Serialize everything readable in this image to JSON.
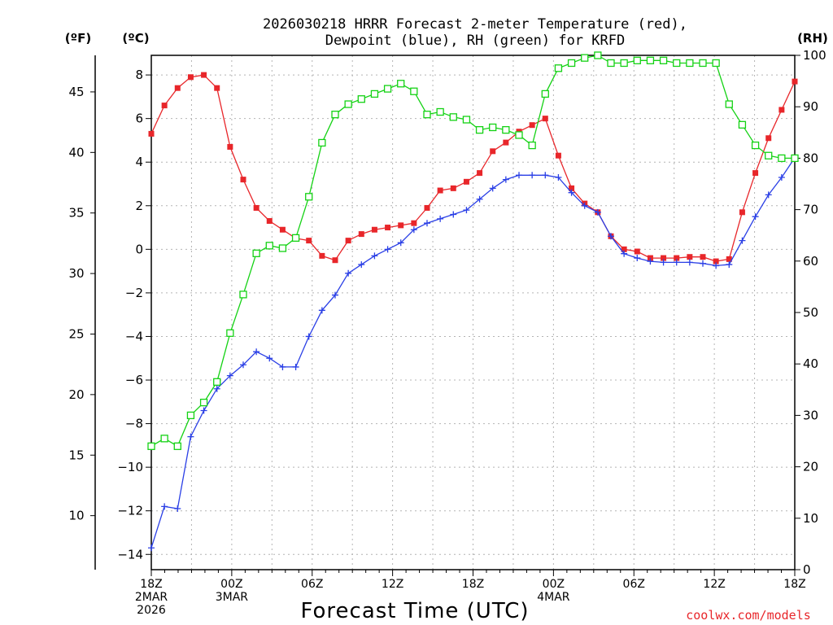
{
  "chart_data": {
    "type": "line",
    "title_line1": "2026030218 HRRR Forecast 2-meter Temperature (red),",
    "title_line2": "Dewpoint (blue), RH (green) for KRFD",
    "unit_left_f": "(ºF)",
    "unit_left_c": "(ºC)",
    "unit_right": "(RH)",
    "xlabel": "Forecast Time (UTC)",
    "credit": "coolwx.com/models",
    "x_range": [
      0,
      48
    ],
    "c_range": [
      -14.7,
      8.9
    ],
    "rh_range": [
      0,
      100
    ],
    "f_ticks": [
      10,
      15,
      20,
      25,
      30,
      35,
      40,
      45
    ],
    "c_ticks": [
      -14,
      -12,
      -10,
      -8,
      -6,
      -4,
      -2,
      0,
      2,
      4,
      6,
      8
    ],
    "rh_ticks": [
      0,
      10,
      20,
      30,
      40,
      50,
      60,
      70,
      80,
      90,
      100
    ],
    "x_ticks": [
      {
        "x": 0,
        "lines": [
          "18Z",
          "2MAR",
          "2026"
        ]
      },
      {
        "x": 6,
        "lines": [
          "00Z",
          "3MAR"
        ]
      },
      {
        "x": 12,
        "lines": [
          "06Z"
        ]
      },
      {
        "x": 18,
        "lines": [
          "12Z"
        ]
      },
      {
        "x": 24,
        "lines": [
          "18Z"
        ]
      },
      {
        "x": 30,
        "lines": [
          "00Z",
          "4MAR"
        ]
      },
      {
        "x": 36,
        "lines": [
          "06Z"
        ]
      },
      {
        "x": 42,
        "lines": [
          "12Z"
        ]
      },
      {
        "x": 48,
        "lines": [
          "18Z"
        ]
      }
    ],
    "series": [
      {
        "name": "2-meter Temperature",
        "unit": "C",
        "color": "#e8262a",
        "marker": "filled-square",
        "values": [
          5.3,
          6.6,
          7.4,
          7.9,
          8.0,
          7.4,
          4.7,
          3.2,
          1.9,
          1.3,
          0.9,
          0.5,
          0.4,
          -0.3,
          -0.5,
          0.4,
          0.7,
          0.9,
          1.0,
          1.1,
          1.2,
          1.9,
          2.7,
          2.8,
          3.1,
          3.5,
          4.5,
          4.9,
          5.4,
          5.7,
          6.0,
          4.3,
          2.8,
          2.1,
          1.7,
          0.6,
          0.0,
          -0.1,
          -0.4,
          -0.4,
          -0.4,
          -0.35,
          -0.35,
          -0.55,
          -0.45,
          1.7,
          3.5,
          5.1,
          6.4,
          7.7
        ]
      },
      {
        "name": "Dewpoint",
        "unit": "C",
        "color": "#2a3fe6",
        "marker": "plus",
        "values": [
          -13.7,
          -11.8,
          -11.9,
          -8.6,
          -7.4,
          -6.4,
          -5.8,
          -5.3,
          -4.7,
          -5.0,
          -5.4,
          -5.4,
          -4.0,
          -2.8,
          -2.1,
          -1.1,
          -0.7,
          -0.3,
          0.0,
          0.3,
          0.9,
          1.2,
          1.4,
          1.6,
          1.8,
          2.3,
          2.8,
          3.2,
          3.4,
          3.4,
          3.4,
          3.3,
          2.6,
          2.0,
          1.7,
          0.6,
          -0.2,
          -0.4,
          -0.55,
          -0.6,
          -0.6,
          -0.6,
          -0.65,
          -0.75,
          -0.7,
          0.4,
          1.5,
          2.5,
          3.3,
          4.2
        ]
      },
      {
        "name": "RH",
        "unit": "%",
        "color": "#14d214",
        "marker": "open-square",
        "values": [
          24,
          25.5,
          24,
          30,
          32.5,
          36.5,
          46,
          53.5,
          61.5,
          63,
          62.5,
          64.5,
          72.5,
          83,
          88.5,
          90.5,
          91.5,
          92.5,
          93.5,
          94.5,
          93,
          88.5,
          89,
          88,
          87.5,
          85.5,
          86,
          85.5,
          84.5,
          82.5,
          92.5,
          97.5,
          98.5,
          99.5,
          100,
          98.5,
          98.5,
          99,
          99,
          99,
          98.5,
          98.5,
          98.5,
          98.5,
          90.5,
          86.5,
          82.5,
          80.5,
          80,
          80
        ]
      }
    ]
  }
}
